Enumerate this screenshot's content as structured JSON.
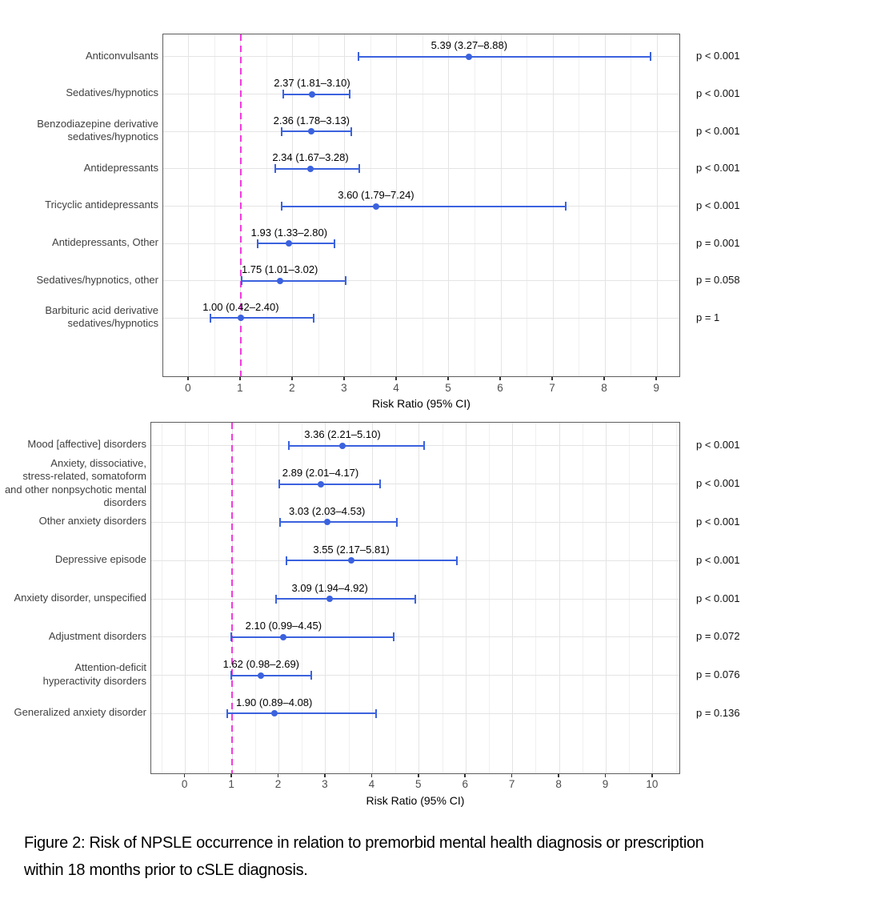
{
  "figure": {
    "caption_line1": "Figure 2: Risk of NPSLE occurrence in relation to premorbid mental health diagnosis or prescription",
    "caption_line2": "within 18 months prior to cSLE diagnosis."
  },
  "chart_data": [
    {
      "type": "scatter",
      "subtype": "forest-plot-horizontal-ci",
      "panel": "top: premorbid prescriptions",
      "title": "",
      "xlabel": "Risk Ratio (95% CI)",
      "ylabel": "",
      "xlim": [
        -0.49,
        9.46
      ],
      "xticks": [
        0,
        1,
        2,
        3,
        4,
        5,
        6,
        7,
        8,
        9
      ],
      "minor_grid_step": 0.5,
      "grid": "major-and-minor-vertical, major-horizontal-per-category",
      "legend": "none",
      "reference_line_x": 1,
      "rows": [
        {
          "label": "Anticonvulsants",
          "estimate": 5.39,
          "ci_low": 3.27,
          "ci_high": 8.88,
          "value_label": "5.39 (3.27–8.88)",
          "p_label": "p < 0.001"
        },
        {
          "label": "Sedatives/hypnotics",
          "estimate": 2.37,
          "ci_low": 1.81,
          "ci_high": 3.1,
          "value_label": "2.37 (1.81–3.10)",
          "p_label": "p < 0.001"
        },
        {
          "label": "Benzodiazepine derivative\nsedatives/hypnotics",
          "estimate": 2.36,
          "ci_low": 1.78,
          "ci_high": 3.13,
          "value_label": "2.36 (1.78–3.13)",
          "p_label": "p < 0.001"
        },
        {
          "label": "Antidepressants",
          "estimate": 2.34,
          "ci_low": 1.67,
          "ci_high": 3.28,
          "value_label": "2.34 (1.67–3.28)",
          "p_label": "p < 0.001"
        },
        {
          "label": "Tricyclic antidepressants",
          "estimate": 3.6,
          "ci_low": 1.79,
          "ci_high": 7.24,
          "value_label": "3.60 (1.79–7.24)",
          "p_label": "p < 0.001"
        },
        {
          "label": "Antidepressants, Other",
          "estimate": 1.93,
          "ci_low": 1.33,
          "ci_high": 2.8,
          "value_label": "1.93 (1.33–2.80)",
          "p_label": "p = 0.001"
        },
        {
          "label": "Sedatives/hypnotics, other",
          "estimate": 1.75,
          "ci_low": 1.01,
          "ci_high": 3.02,
          "value_label": "1.75 (1.01–3.02)",
          "p_label": "p = 0.058"
        },
        {
          "label": "Barbituric acid derivative\nsedatives/hypnotics",
          "estimate": 1.0,
          "ci_low": 0.42,
          "ci_high": 2.4,
          "value_label": "1.00 (0.42–2.40)",
          "p_label": "p = 1"
        }
      ],
      "colors": {
        "point_and_ci": "#3B62DE",
        "reference_line": "#F23ADF",
        "panel_border": "#5E5E5E",
        "grid_major": "#E4E4E4",
        "grid_minor": "#F0F0F0",
        "tick_mark": "#333333",
        "tick_label": "#4D4D4D",
        "category_label": "#404040",
        "value_label": "#000000"
      }
    },
    {
      "type": "scatter",
      "subtype": "forest-plot-horizontal-ci",
      "panel": "bottom: premorbid mental health diagnoses",
      "title": "",
      "xlabel": "Risk Ratio (95% CI)",
      "ylabel": "",
      "xlim": [
        -0.73,
        10.6
      ],
      "xticks": [
        0,
        1,
        2,
        3,
        4,
        5,
        6,
        7,
        8,
        9,
        10
      ],
      "minor_grid_step": 0.5,
      "grid": "major-and-minor-vertical, major-horizontal-per-category",
      "legend": "none",
      "reference_line_x": 1,
      "rows": [
        {
          "label": "Mood [affective] disorders",
          "estimate": 3.36,
          "ci_low": 2.21,
          "ci_high": 5.1,
          "value_label": "3.36 (2.21–5.10)",
          "p_label": "p < 0.001"
        },
        {
          "label": "Anxiety, dissociative,\nstress-related, somatoform\nand other nonpsychotic mental\ndisorders",
          "estimate": 2.89,
          "ci_low": 2.01,
          "ci_high": 4.17,
          "value_label": "2.89 (2.01–4.17)",
          "p_label": "p < 0.001"
        },
        {
          "label": "Other anxiety disorders",
          "estimate": 3.03,
          "ci_low": 2.03,
          "ci_high": 4.53,
          "value_label": "3.03 (2.03–4.53)",
          "p_label": "p < 0.001"
        },
        {
          "label": "Depressive episode",
          "estimate": 3.55,
          "ci_low": 2.17,
          "ci_high": 5.81,
          "value_label": "3.55 (2.17–5.81)",
          "p_label": "p < 0.001"
        },
        {
          "label": "Anxiety disorder, unspecified",
          "estimate": 3.09,
          "ci_low": 1.94,
          "ci_high": 4.92,
          "value_label": "3.09 (1.94–4.92)",
          "p_label": "p < 0.001"
        },
        {
          "label": "Adjustment disorders",
          "estimate": 2.1,
          "ci_low": 0.99,
          "ci_high": 4.45,
          "value_label": "2.10 (0.99–4.45)",
          "p_label": "p = 0.072"
        },
        {
          "label": "Attention-deficit\nhyperactivity disorders",
          "estimate": 1.62,
          "ci_low": 0.98,
          "ci_high": 2.69,
          "value_label": "1.62 (0.98–2.69)",
          "p_label": "p = 0.076"
        },
        {
          "label": "Generalized anxiety disorder",
          "estimate": 1.9,
          "ci_low": 0.89,
          "ci_high": 4.08,
          "value_label": "1.90 (0.89–4.08)",
          "p_label": "p = 0.136"
        }
      ],
      "colors": {
        "point_and_ci": "#3B62DE",
        "reference_line": "#F23ADF",
        "panel_border": "#5E5E5E",
        "grid_major": "#E4E4E4",
        "grid_minor": "#F0F0F0",
        "tick_mark": "#333333",
        "tick_label": "#4D4D4D",
        "category_label": "#404040",
        "value_label": "#000000"
      }
    }
  ]
}
